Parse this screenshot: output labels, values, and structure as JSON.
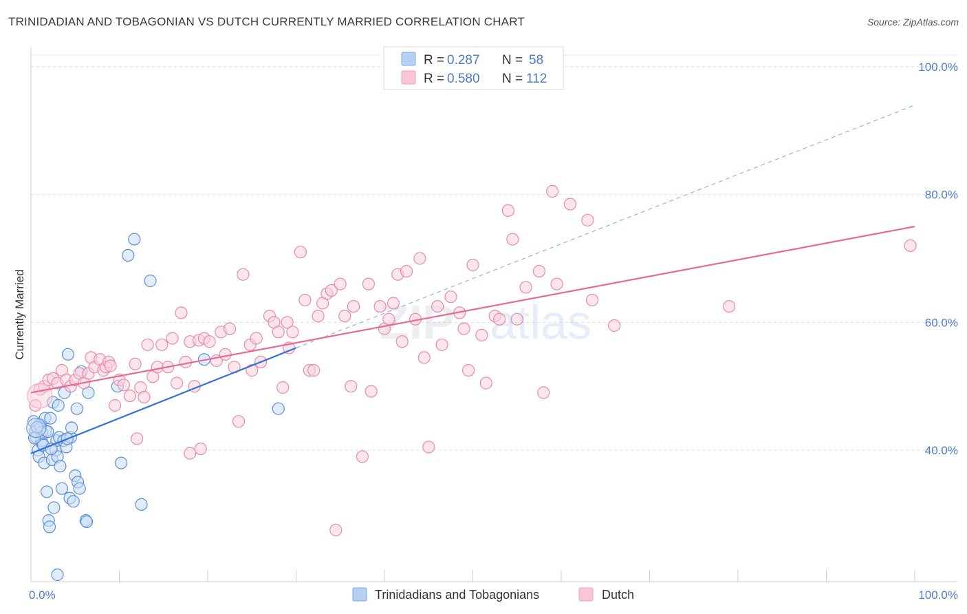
{
  "header": {
    "title": "TRINIDADIAN AND TOBAGONIAN VS DUTCH CURRENTLY MARRIED CORRELATION CHART",
    "source": "Source: ZipAtlas.com"
  },
  "watermark": {
    "zip": "ZIP",
    "atlas": "atlas"
  },
  "legend_top": {
    "rows": [
      {
        "r_label": "R =",
        "r_value": "0.287",
        "n_label": "N =",
        "n_value": "58",
        "color": "#7aa8e6"
      },
      {
        "r_label": "R =",
        "r_value": "0.580",
        "n_label": "N =",
        "n_value": "112",
        "color": "#f0a0b8"
      }
    ]
  },
  "chart_data": {
    "type": "scatter",
    "title": "TRINIDADIAN AND TOBAGONIAN VS DUTCH CURRENTLY MARRIED CORRELATION CHART",
    "xlabel": "",
    "ylabel": "Currently Married",
    "xlim": [
      0,
      100
    ],
    "ylim": [
      20,
      100
    ],
    "x_tick_labels": [
      "0.0%",
      "100.0%"
    ],
    "y_ticks": [
      40,
      60,
      80,
      100
    ],
    "y_tick_labels": [
      "40.0%",
      "60.0%",
      "80.0%",
      "100.0%"
    ],
    "grid": true,
    "series": [
      {
        "name": "Trinidadians and Tobagonians",
        "color": "#7aa8e6",
        "stroke": "#5b8fd8",
        "trend": {
          "x0": 0,
          "y0": 39.5,
          "x1": 30,
          "y1": 56,
          "dash_x1": 100,
          "dash_y1": 94
        },
        "points": [
          [
            0.3,
            44.5
          ],
          [
            0.5,
            43
          ],
          [
            0.6,
            42
          ],
          [
            0.8,
            40
          ],
          [
            0.9,
            39
          ],
          [
            1.0,
            44
          ],
          [
            1.1,
            43.5
          ],
          [
            1.2,
            41.5
          ],
          [
            1.3,
            41
          ],
          [
            1.4,
            40.8
          ],
          [
            1.5,
            38
          ],
          [
            1.6,
            45
          ],
          [
            1.7,
            43
          ],
          [
            1.8,
            33.5
          ],
          [
            2.0,
            29
          ],
          [
            2.1,
            28
          ],
          [
            2.2,
            45
          ],
          [
            2.4,
            38.5
          ],
          [
            2.5,
            47.5
          ],
          [
            2.6,
            31
          ],
          [
            2.8,
            40
          ],
          [
            2.9,
            41.5
          ],
          [
            3.0,
            39
          ],
          [
            3.1,
            47
          ],
          [
            3.2,
            42
          ],
          [
            3.3,
            37.5
          ],
          [
            3.5,
            34
          ],
          [
            3.7,
            41.5
          ],
          [
            3.8,
            49
          ],
          [
            4.0,
            40.5
          ],
          [
            4.2,
            55
          ],
          [
            4.4,
            32.5
          ],
          [
            4.5,
            42
          ],
          [
            4.6,
            43.5
          ],
          [
            4.8,
            32
          ],
          [
            5.0,
            36
          ],
          [
            5.2,
            46.5
          ],
          [
            5.3,
            35
          ],
          [
            5.5,
            34
          ],
          [
            5.7,
            52.3
          ],
          [
            6.2,
            29
          ],
          [
            6.3,
            28.8
          ],
          [
            6.5,
            49
          ],
          [
            9.8,
            50
          ],
          [
            10.2,
            38
          ],
          [
            11.0,
            70.5
          ],
          [
            11.7,
            73
          ],
          [
            12.5,
            31.5
          ],
          [
            13.5,
            66.5
          ],
          [
            19.6,
            54.2
          ],
          [
            28.0,
            46.5
          ],
          [
            3.0,
            20.5
          ],
          [
            1.2,
            42.8
          ],
          [
            0.7,
            43.6
          ],
          [
            2.3,
            40.2
          ],
          [
            1.9,
            42.9
          ],
          [
            4.1,
            41.8
          ],
          [
            0.4,
            41.9
          ]
        ]
      },
      {
        "name": "Dutch",
        "color": "#f0a0b8",
        "stroke": "#e98aa8",
        "trend": {
          "x0": 0,
          "y0": 49,
          "x1": 100,
          "y1": 75
        },
        "points": [
          [
            0.5,
            47
          ],
          [
            1.0,
            49.5
          ],
          [
            1.5,
            50
          ],
          [
            2.0,
            51
          ],
          [
            2.5,
            51.2
          ],
          [
            3.0,
            50.5
          ],
          [
            3.5,
            52.5
          ],
          [
            4.0,
            51
          ],
          [
            4.5,
            50
          ],
          [
            5.0,
            51
          ],
          [
            5.5,
            52
          ],
          [
            6.0,
            50.5
          ],
          [
            6.5,
            52
          ],
          [
            6.8,
            54.5
          ],
          [
            7.2,
            53
          ],
          [
            7.8,
            54.2
          ],
          [
            8.2,
            52.5
          ],
          [
            8.5,
            53
          ],
          [
            8.8,
            53.8
          ],
          [
            9.0,
            53.2
          ],
          [
            9.5,
            47
          ],
          [
            10.0,
            51
          ],
          [
            10.5,
            50.2
          ],
          [
            11.2,
            48.5
          ],
          [
            11.8,
            53.5
          ],
          [
            12.4,
            49.8
          ],
          [
            12.8,
            48.3
          ],
          [
            13.2,
            56.5
          ],
          [
            13.8,
            51.5
          ],
          [
            14.3,
            53
          ],
          [
            14.8,
            56.5
          ],
          [
            15.5,
            53
          ],
          [
            16.0,
            57.5
          ],
          [
            16.5,
            50.5
          ],
          [
            17.0,
            61.5
          ],
          [
            17.5,
            53.8
          ],
          [
            18.0,
            57
          ],
          [
            18.5,
            50
          ],
          [
            19.0,
            57.2
          ],
          [
            19.6,
            57.5
          ],
          [
            20.2,
            57
          ],
          [
            21.0,
            54
          ],
          [
            21.5,
            58.5
          ],
          [
            22.0,
            55
          ],
          [
            22.5,
            59
          ],
          [
            23.0,
            53
          ],
          [
            23.5,
            44.5
          ],
          [
            24.0,
            67.5
          ],
          [
            24.8,
            56.5
          ],
          [
            25.0,
            52.5
          ],
          [
            25.5,
            57.5
          ],
          [
            26.0,
            53.8
          ],
          [
            27.0,
            61
          ],
          [
            27.5,
            60
          ],
          [
            28.0,
            58.5
          ],
          [
            28.5,
            49.8
          ],
          [
            29.0,
            60
          ],
          [
            29.6,
            58.5
          ],
          [
            30.5,
            71
          ],
          [
            31.0,
            63.5
          ],
          [
            31.5,
            52.5
          ],
          [
            32.0,
            52.5
          ],
          [
            32.5,
            61
          ],
          [
            33.0,
            63
          ],
          [
            33.5,
            64.5
          ],
          [
            34.0,
            65
          ],
          [
            35.0,
            66
          ],
          [
            35.5,
            61
          ],
          [
            36.2,
            50
          ],
          [
            36.5,
            62.5
          ],
          [
            37.5,
            39
          ],
          [
            38.5,
            49.2
          ],
          [
            39.5,
            62.5
          ],
          [
            40.0,
            59
          ],
          [
            40.5,
            60.5
          ],
          [
            41.0,
            63
          ],
          [
            41.5,
            67.5
          ],
          [
            42.0,
            57
          ],
          [
            42.5,
            68
          ],
          [
            43.5,
            60.5
          ],
          [
            44.0,
            70
          ],
          [
            44.5,
            54.5
          ],
          [
            45.0,
            40.5
          ],
          [
            46.0,
            62.5
          ],
          [
            46.5,
            56.5
          ],
          [
            47.5,
            64
          ],
          [
            48.5,
            61.5
          ],
          [
            49.0,
            59
          ],
          [
            49.5,
            52.5
          ],
          [
            50.0,
            69
          ],
          [
            51.0,
            58
          ],
          [
            51.5,
            50.5
          ],
          [
            52.5,
            61
          ],
          [
            53.0,
            60.5
          ],
          [
            54.0,
            77.5
          ],
          [
            54.5,
            73
          ],
          [
            55.0,
            60.5
          ],
          [
            56.0,
            65.5
          ],
          [
            57.5,
            68
          ],
          [
            58.0,
            49
          ],
          [
            59.0,
            80.5
          ],
          [
            59.5,
            66
          ],
          [
            61.0,
            78.5
          ],
          [
            63.0,
            76
          ],
          [
            63.5,
            63.5
          ],
          [
            66.0,
            59.5
          ],
          [
            79.0,
            62.5
          ],
          [
            99.5,
            72
          ],
          [
            34.5,
            27.5
          ],
          [
            19.2,
            40.2
          ],
          [
            18.0,
            39.5
          ],
          [
            12.0,
            41.8
          ],
          [
            29.2,
            56
          ],
          [
            38.2,
            66
          ]
        ]
      }
    ]
  },
  "bottom_legend": {
    "items": [
      {
        "label": "Trinidadians and Tobagonians",
        "color": "#7aa8e6"
      },
      {
        "label": "Dutch",
        "color": "#f0a0b8"
      }
    ]
  }
}
